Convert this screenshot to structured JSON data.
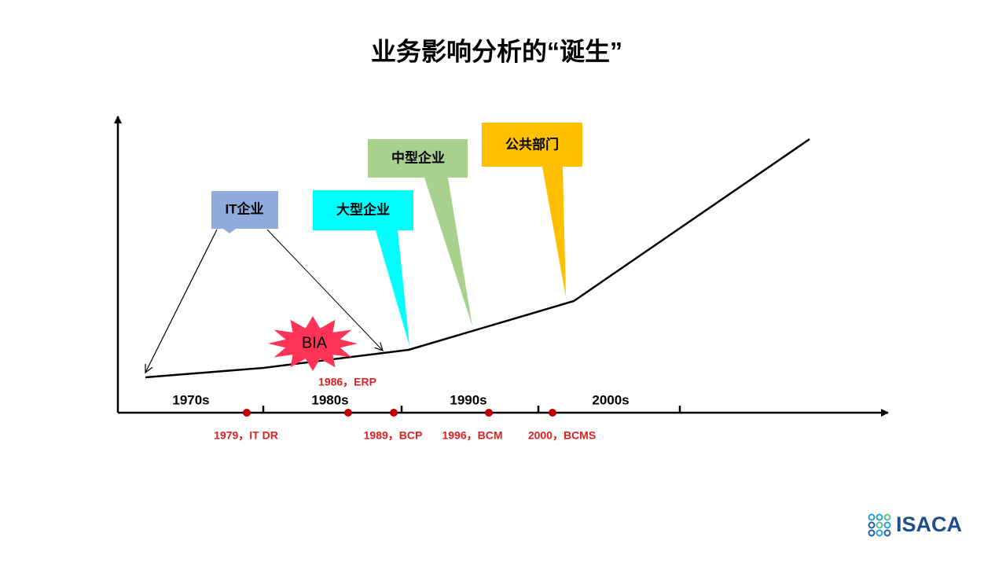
{
  "title": "业务影响分析的“诞生”",
  "decades": [
    "1970s",
    "1980s",
    "1990s",
    "2000s"
  ],
  "events": [
    "1979，IT DR",
    "1986，ERP",
    "1989，BCP",
    "1996，BCM",
    "2000，BCMS"
  ],
  "callouts": [
    "IT企业",
    "大型企业",
    "中型企业",
    "公共部门"
  ],
  "burst": "BIA",
  "logo": "ISACA"
}
